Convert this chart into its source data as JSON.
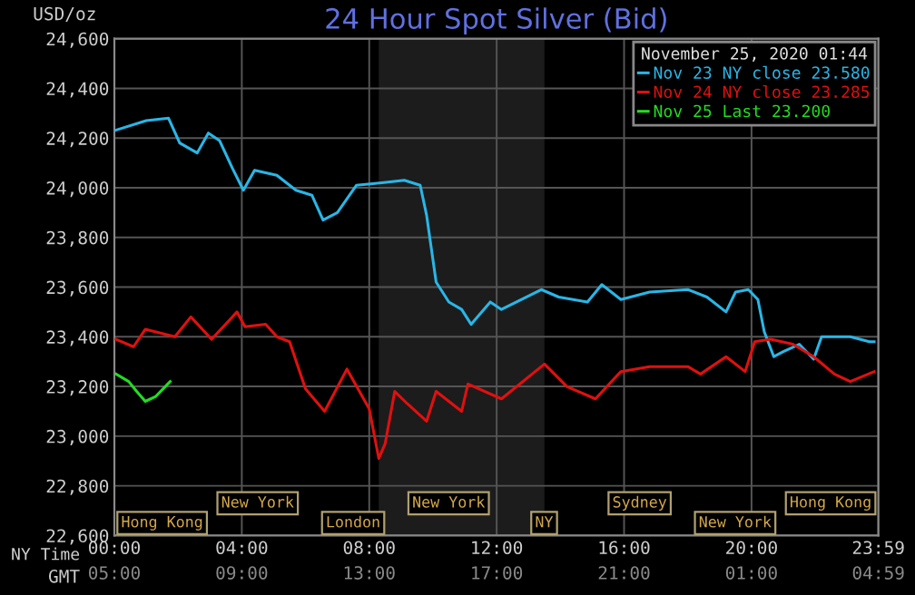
{
  "chart_data": [
    {
      "type": "line",
      "title": "24 Hour Spot Silver (Bid)",
      "ylabel": "USD/oz",
      "xlabel": "NY Time",
      "x2label": "GMT",
      "legend_title": "November 25, 2020 01:44",
      "legend": "top right",
      "grid": true,
      "marker": "none",
      "line_style": "solid",
      "xlim": [
        0,
        23.983
      ],
      "xticks": [
        {
          "value": 0,
          "label": "00:00"
        },
        {
          "value": 4,
          "label": "04:00"
        },
        {
          "value": 8,
          "label": "08:00"
        },
        {
          "value": 12,
          "label": "12:00"
        },
        {
          "value": 16,
          "label": "16:00"
        },
        {
          "value": 20,
          "label": "20:00"
        },
        {
          "value": 23.983,
          "label": "23:59"
        }
      ],
      "x2lim": [
        "2020-11-24T05:00",
        "2020-11-25T04:59"
      ],
      "x2ticks": [
        {
          "value": "2020-11-24T05:00",
          "label": "05:00"
        },
        {
          "value": "2020-11-24T09:00",
          "label": "09:00"
        },
        {
          "value": "2020-11-24T13:00",
          "label": "13:00"
        },
        {
          "value": "2020-11-24T17:00",
          "label": "17:00"
        },
        {
          "value": "2020-11-24T21:00",
          "label": "21:00"
        },
        {
          "value": "2020-11-25T01:00",
          "label": "01:00"
        },
        {
          "value": "2020-11-25T04:59",
          "label": "04:59"
        }
      ],
      "ylim": [
        22600,
        24600
      ],
      "yticks": [
        {
          "value": 22600,
          "label": "22,600"
        },
        {
          "value": 22800,
          "label": "22,800"
        },
        {
          "value": 23000,
          "label": "23,000"
        },
        {
          "value": 23200,
          "label": "23,200"
        },
        {
          "value": 23400,
          "label": "23,400"
        },
        {
          "value": 23600,
          "label": "23,600"
        },
        {
          "value": 23800,
          "label": "23,800"
        },
        {
          "value": 24000,
          "label": "24,000"
        },
        {
          "value": 24200,
          "label": "24,200"
        },
        {
          "value": 24400,
          "label": "24,400"
        },
        {
          "value": 24600,
          "label": "24,600"
        }
      ],
      "bands": [
        {
          "axis": "x",
          "from": 8.3,
          "to": 13.5,
          "color": "#1c1c1c"
        }
      ],
      "annotations": [
        "Hong Kong",
        "New York",
        "London",
        "New York",
        "NY",
        "Sydney",
        "New York",
        "Hong Kong"
      ],
      "series": [
        {
          "name": "Nov 23 NY close 23.580",
          "color": "#29b6e6",
          "x": [
            0,
            1,
            1.7,
            2.05,
            2.6,
            2.95,
            3.3,
            3.7,
            4.05,
            4.4,
            5.1,
            5.7,
            6.2,
            6.55,
            7.0,
            7.6,
            8.4,
            9.1,
            9.6,
            9.8,
            10.1,
            10.5,
            10.9,
            11.2,
            11.8,
            12.15,
            13.4,
            13.95,
            14.85,
            15.3,
            15.9,
            16.8,
            18.0,
            18.6,
            19.2,
            19.5,
            19.9,
            20.2,
            20.4,
            20.7,
            21.0,
            21.5,
            21.95,
            22.2,
            23.1,
            23.7,
            23.85
          ],
          "values": [
            24230,
            24270,
            24280,
            24180,
            24140,
            24220,
            24190,
            24080,
            23990,
            24070,
            24050,
            23990,
            23970,
            23870,
            23900,
            24010,
            24020,
            24030,
            24010,
            23890,
            23620,
            23540,
            23510,
            23450,
            23540,
            23510,
            23590,
            23560,
            23540,
            23610,
            23550,
            23580,
            23590,
            23560,
            23500,
            23580,
            23590,
            23550,
            23420,
            23320,
            23340,
            23370,
            23310,
            23400,
            23400,
            23380,
            23380
          ]
        },
        {
          "name": "Nov 24 NY close 23.285",
          "color": "#e01010",
          "x": [
            0.05,
            0.6,
            0.97,
            1.9,
            2.4,
            3.05,
            3.85,
            4.1,
            4.75,
            5.1,
            5.5,
            6.0,
            6.6,
            7.3,
            8.0,
            8.3,
            8.5,
            8.8,
            9.2,
            9.8,
            10.1,
            10.9,
            11.1,
            12.15,
            13.5,
            14.2,
            15.1,
            15.9,
            16.8,
            18.0,
            18.4,
            19.2,
            19.8,
            20.1,
            20.6,
            21.3,
            21.95,
            22.6,
            23.1,
            23.85
          ],
          "values": [
            23390,
            23360,
            23430,
            23400,
            23480,
            23390,
            23500,
            23440,
            23450,
            23400,
            23380,
            23190,
            23100,
            23270,
            23110,
            22910,
            22970,
            23180,
            23130,
            23060,
            23180,
            23100,
            23210,
            23150,
            23290,
            23200,
            23150,
            23260,
            23280,
            23280,
            23250,
            23320,
            23260,
            23380,
            23390,
            23370,
            23320,
            23250,
            23220,
            23260
          ]
        },
        {
          "name": "Nov 25 Last 23.200",
          "color": "#22dd22",
          "x": [
            0.05,
            0.45,
            0.7,
            0.97,
            1.3,
            1.6,
            1.75
          ],
          "values": [
            23250,
            23220,
            23180,
            23140,
            23160,
            23200,
            23220
          ]
        }
      ]
    }
  ]
}
